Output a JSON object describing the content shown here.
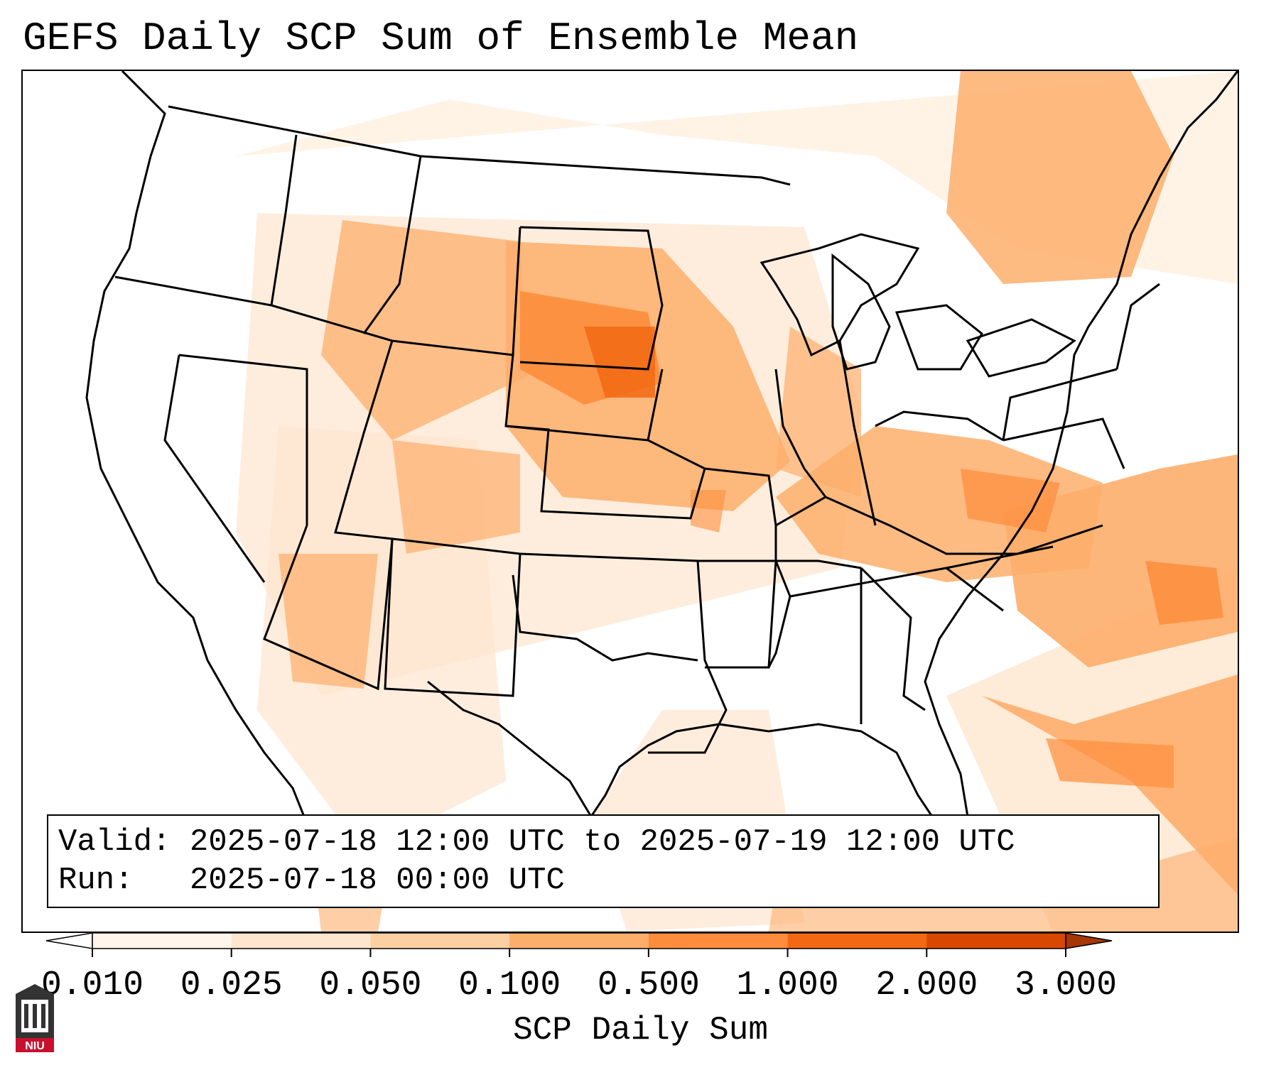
{
  "title": "GEFS Daily SCP Sum of Ensemble Mean",
  "info": {
    "valid_label": "Valid:",
    "valid_range": "2025-07-18 12:00 UTC to 2025-07-19 12:00 UTC",
    "run_label": "Run:",
    "run_time": "2025-07-18 00:00 UTC"
  },
  "colorbar": {
    "label": "SCP Daily Sum",
    "ticks": [
      "0.010",
      "0.025",
      "0.050",
      "0.100",
      "0.500",
      "1.000",
      "2.000",
      "3.000"
    ],
    "colors": [
      "#fff5eb",
      "#fee6ce",
      "#fdd0a2",
      "#fdae6b",
      "#fd8d3c",
      "#f16913",
      "#d94801",
      "#a63603"
    ],
    "extend": "both"
  },
  "logo": {
    "text": "NIU",
    "color": "#c8102e"
  }
}
